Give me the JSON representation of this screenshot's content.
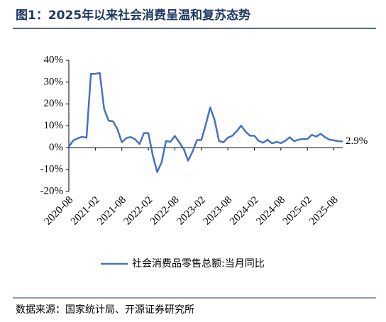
{
  "chart_data": {
    "type": "line",
    "title": "图1：2025年以来社会消费呈温和复苏态势",
    "source": "数据来源：国家统计局、开源证券研究所",
    "annotation": "2.9%",
    "categories": [
      "2020-08",
      null,
      null,
      null,
      null,
      null,
      "2021-02",
      null,
      null,
      null,
      null,
      null,
      "2021-08",
      null,
      null,
      null,
      null,
      null,
      "2022-02",
      null,
      null,
      null,
      null,
      null,
      "2022-08",
      null,
      null,
      null,
      null,
      null,
      "2023-02",
      null,
      null,
      null,
      null,
      null,
      "2023-08",
      null,
      null,
      null,
      null,
      null,
      "2024-02",
      null,
      null,
      null,
      null,
      null,
      "2024-08",
      null,
      null,
      null,
      null,
      null,
      "2025-02",
      null,
      null,
      null,
      null,
      null,
      "2025-08",
      null,
      null
    ],
    "series": [
      {
        "name": "社会消费品零售总额:当月同比",
        "color": "#4472c4",
        "values": [
          0.5,
          3.3,
          4.3,
          5.0,
          4.6,
          33.8,
          33.8,
          34.2,
          17.7,
          12.4,
          12.1,
          8.5,
          2.5,
          4.4,
          4.9,
          3.9,
          1.7,
          6.7,
          6.7,
          -3.5,
          -11.1,
          -6.7,
          3.1,
          2.7,
          5.4,
          2.5,
          -0.5,
          -5.9,
          -1.8,
          3.5,
          3.5,
          10.6,
          18.4,
          12.7,
          3.1,
          2.5,
          4.6,
          5.5,
          7.6,
          10.1,
          7.4,
          5.5,
          5.5,
          3.1,
          2.3,
          3.7,
          2.0,
          2.7,
          2.1,
          3.2,
          4.8,
          3.0,
          3.7,
          4.0,
          4.0,
          5.9,
          5.1,
          6.4,
          4.8,
          3.7,
          3.4,
          3.0,
          2.9
        ]
      }
    ],
    "ylim": [
      -20,
      40
    ],
    "yticks": [
      {
        "value": -20,
        "label": "-20%"
      },
      {
        "value": -10,
        "label": "-10%"
      },
      {
        "value": 0,
        "label": "0%"
      },
      {
        "value": 10,
        "label": "10%"
      },
      {
        "value": 20,
        "label": "20%"
      },
      {
        "value": 30,
        "label": "30%"
      },
      {
        "value": 40,
        "label": "40%"
      }
    ],
    "grid": false
  }
}
